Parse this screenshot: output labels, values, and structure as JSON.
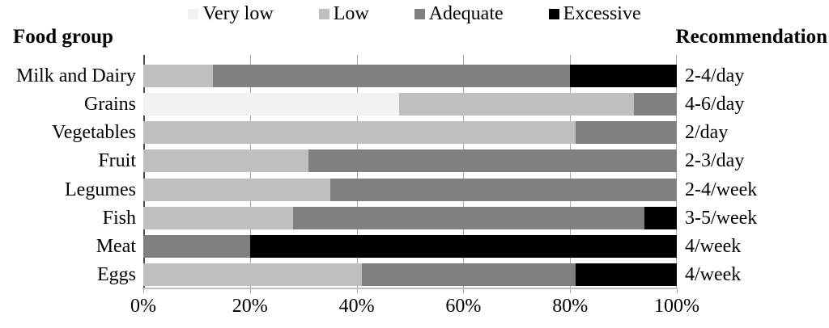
{
  "header": {
    "left_title": "Food group",
    "right_title": "Recommendation"
  },
  "chart_data": {
    "type": "bar",
    "orientation": "horizontal",
    "stacked": true,
    "grid": true,
    "legend_position": "top",
    "xlim": [
      0,
      100
    ],
    "x_ticks": [
      "0%",
      "20%",
      "40%",
      "60%",
      "80%",
      "100%"
    ],
    "legend": [
      {
        "label": "Very low",
        "color": "#f2f2f2"
      },
      {
        "label": "Low",
        "color": "#bfbfbf"
      },
      {
        "label": "Adequate",
        "color": "#808080"
      },
      {
        "label": "Excessive",
        "color": "#000000"
      }
    ],
    "categories": [
      "Milk and Dairy",
      "Grains",
      "Vegetables",
      "Fruit",
      "Legumes",
      "Fish",
      "Meat",
      "Eggs"
    ],
    "series": [
      {
        "name": "Very low",
        "values": [
          0,
          48,
          0,
          0,
          0,
          0,
          0,
          0
        ]
      },
      {
        "name": "Low",
        "values": [
          13,
          44,
          81,
          31,
          35,
          28,
          0,
          41
        ]
      },
      {
        "name": "Adequate",
        "values": [
          67,
          8,
          19,
          69,
          65,
          66,
          20,
          40
        ]
      },
      {
        "name": "Excessive",
        "values": [
          20,
          0,
          0,
          0,
          0,
          6,
          80,
          19
        ]
      }
    ],
    "recommendations": [
      "2-4/day",
      "4-6/day",
      "2/day",
      "2-3/day",
      "2-4/week",
      "3-5/week",
      "4/week",
      "4/week"
    ]
  },
  "colors": {
    "background": "#ffffff",
    "gridline": "#a6a6a6",
    "y_axis_line": "#4d4d4d",
    "x_axis_line": "#bfbfbf",
    "text": "#000000"
  }
}
